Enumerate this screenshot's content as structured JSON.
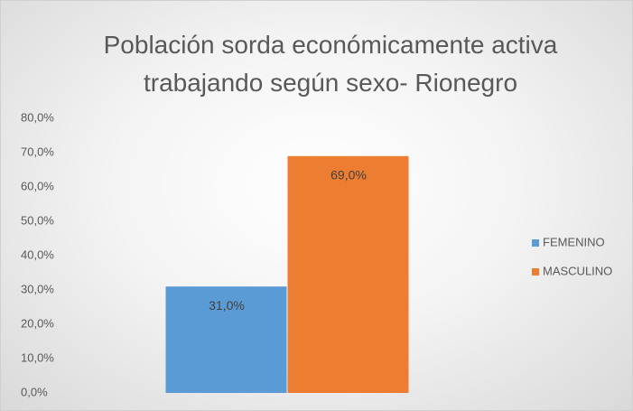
{
  "chart_data": {
    "type": "bar",
    "title": "Población sorda económicamente activa trabajando según sexo- Rionegro",
    "categories": [
      null
    ],
    "series": [
      {
        "name": "FEMENINO",
        "color": "#5b9bd5",
        "values": [
          31
        ],
        "value_labels": [
          "31,0%"
        ]
      },
      {
        "name": "MASCULINO",
        "color": "#ed7d31",
        "values": [
          69
        ],
        "value_labels": [
          "69,0%"
        ]
      }
    ],
    "ylim": [
      0,
      80
    ],
    "yticks": [
      {
        "value": 0,
        "label": "0,0%"
      },
      {
        "value": 10,
        "label": "10,0%"
      },
      {
        "value": 20,
        "label": "20,0%"
      },
      {
        "value": 30,
        "label": "30,0%"
      },
      {
        "value": 40,
        "label": "40,0%"
      },
      {
        "value": 50,
        "label": "50,0%"
      },
      {
        "value": 60,
        "label": "60,0%"
      },
      {
        "value": 70,
        "label": "70,0%"
      },
      {
        "value": 80,
        "label": "80,0%"
      }
    ],
    "grid": false,
    "legend": "right"
  }
}
